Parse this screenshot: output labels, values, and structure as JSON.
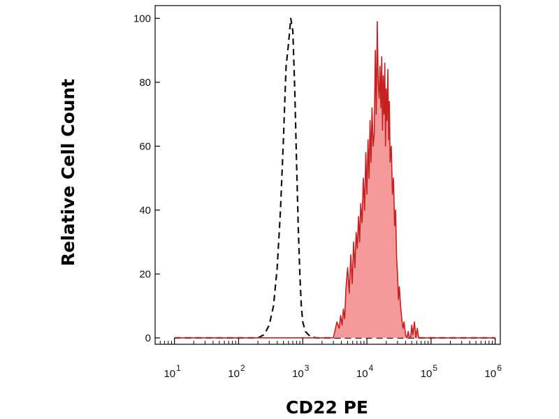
{
  "chart_data": {
    "type": "area",
    "title": "",
    "xlabel": "CD22 PE",
    "ylabel": "Relative Cell Count",
    "x_scale": "log",
    "xlim": [
      5,
      1200000
    ],
    "ylim": [
      -2,
      104
    ],
    "grid": false,
    "y_ticks": [
      {
        "value": 0,
        "label": "0"
      },
      {
        "value": 20,
        "label": "20"
      },
      {
        "value": 40,
        "label": "40"
      },
      {
        "value": 60,
        "label": "60"
      },
      {
        "value": 80,
        "label": "80"
      },
      {
        "value": 100,
        "label": "100"
      }
    ],
    "x_ticks": [
      {
        "value": 10,
        "base": "10",
        "exp": "1"
      },
      {
        "value": 100,
        "base": "10",
        "exp": "2"
      },
      {
        "value": 1000,
        "base": "10",
        "exp": "3"
      },
      {
        "value": 10000,
        "base": "10",
        "exp": "4"
      },
      {
        "value": 100000,
        "base": "10",
        "exp": "5"
      },
      {
        "value": 1000000,
        "base": "10",
        "exp": "6"
      }
    ],
    "series": [
      {
        "style": "dashed",
        "color": "#111111",
        "x": [
          10,
          100,
          200,
          250,
          300,
          350,
          400,
          450,
          500,
          550,
          600,
          650,
          700,
          750,
          800,
          850,
          900,
          950,
          1000,
          1100,
          1300,
          1600,
          2000,
          3000,
          1000000
        ],
        "y": [
          0,
          0,
          0,
          1,
          4,
          10,
          22,
          40,
          62,
          85,
          92,
          100,
          96,
          78,
          55,
          35,
          20,
          10,
          5,
          2,
          0.5,
          0,
          0,
          0,
          0
        ]
      },
      {
        "style": "filled",
        "color": "#c62020",
        "fill": "#f59a9a",
        "x": [
          10,
          3000,
          3400,
          3700,
          3900,
          4100,
          4300,
          4500,
          4700,
          5000,
          5300,
          5600,
          5900,
          6200,
          6500,
          6800,
          7100,
          7400,
          7700,
          8000,
          8400,
          8800,
          9200,
          9600,
          10000,
          10400,
          10800,
          11200,
          11600,
          12000,
          12500,
          13000,
          13500,
          14000,
          14500,
          15000,
          15500,
          16000,
          16500,
          17000,
          17500,
          18000,
          18500,
          19000,
          19500,
          20000,
          20600,
          21200,
          21800,
          22400,
          23000,
          24000,
          25000,
          26000,
          27000,
          28000,
          29000,
          30000,
          31000,
          32000,
          33500,
          35000,
          36500,
          38000,
          40000,
          42000,
          44000,
          46000,
          48000,
          50000,
          52000,
          55000,
          58000,
          61000,
          64000,
          70000,
          80000,
          1000000
        ],
        "y": [
          0,
          0,
          5,
          3,
          7,
          4,
          9,
          6,
          15,
          22,
          14,
          26,
          17,
          30,
          22,
          33,
          28,
          38,
          30,
          42,
          36,
          50,
          40,
          58,
          45,
          62,
          50,
          68,
          55,
          72,
          60,
          64,
          90,
          70,
          99,
          80,
          75,
          85,
          72,
          88,
          65,
          82,
          70,
          86,
          60,
          78,
          68,
          84,
          62,
          74,
          55,
          60,
          45,
          50,
          35,
          40,
          25,
          20,
          12,
          16,
          10,
          6,
          3,
          5,
          1,
          0,
          2,
          0,
          0,
          4,
          1,
          5,
          0,
          3,
          0,
          0,
          0,
          0
        ]
      }
    ]
  }
}
